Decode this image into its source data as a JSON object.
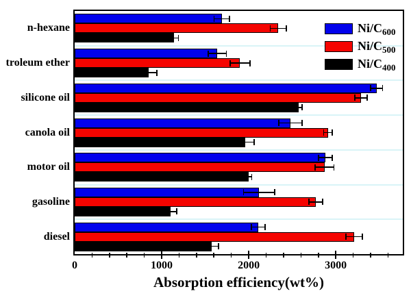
{
  "chart_data": {
    "type": "bar",
    "orientation": "horizontal",
    "title": "",
    "xlabel": "Absorption efficiency(wt%)",
    "ylabel": "",
    "categories": [
      "n-hexane",
      "troleum ether",
      "silicone oil",
      "canola oil",
      "motor oil",
      "gasoline",
      "diesel"
    ],
    "categories_note": "listed top to bottom; first label is 'petroleum ether' clipped at image edge",
    "series": [
      {
        "name": "Ni/C600",
        "label_base": "Ni/C",
        "label_sub": "600",
        "color": "#0202ec",
        "values": [
          1690,
          1640,
          3470,
          2480,
          2880,
          2120,
          2110
        ],
        "errors": [
          95,
          110,
          75,
          140,
          85,
          185,
          85
        ]
      },
      {
        "name": "Ni/C500",
        "label_base": "Ni/C",
        "label_sub": "500",
        "color": "#f50400",
        "values": [
          2340,
          1900,
          3290,
          2910,
          2870,
          2770,
          3210
        ],
        "errors": [
          100,
          120,
          75,
          55,
          115,
          85,
          100
        ]
      },
      {
        "name": "Ni/C400",
        "label_base": "Ni/C",
        "label_sub": "400",
        "color": "#000000",
        "values": [
          1140,
          850,
          2570,
          1960,
          2000,
          1100,
          1575
        ],
        "errors": [
          60,
          100,
          50,
          110,
          40,
          80,
          85
        ]
      }
    ],
    "xlim": [
      0,
      3770
    ],
    "x_major_ticks": [
      0,
      1000,
      2000,
      3000
    ],
    "x_major_tick_labels": [
      "0",
      "1000",
      "2000",
      "3000"
    ],
    "x_minor_tick_interval": 200,
    "legend_position": "top-right-inside",
    "grid": "pale horizontal separator lines between category groups",
    "gridline_color": "#d9f4f7",
    "frame_color": "#000000",
    "background_color": "#ffffff"
  }
}
